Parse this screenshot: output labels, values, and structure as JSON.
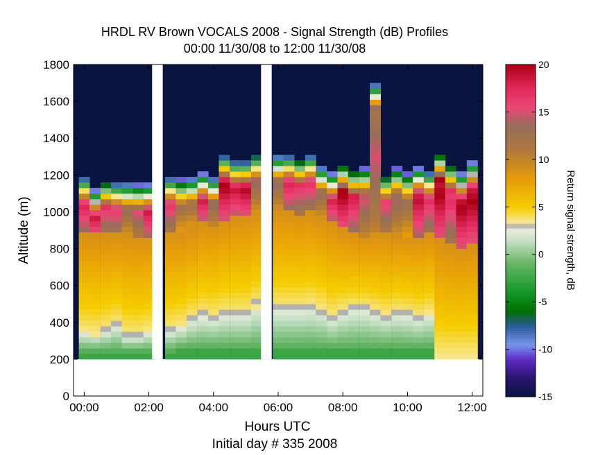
{
  "chart_data": {
    "type": "heatmap",
    "title": "HRDL RV Brown VOCALS 2008 - Signal Strength (dB) Profiles",
    "subtitle": "00:00 11/30/08 to 12:00 11/30/08",
    "xlabel": "Hours UTC",
    "xlabel2": "Initial day # 335  2008",
    "ylabel": "Altitude (m)",
    "xlim": [
      -0.33,
      12.33
    ],
    "ylim": [
      0,
      1800
    ],
    "xticks": [
      "00:00",
      "02:00",
      "04:00",
      "06:00",
      "08:00",
      "10:00",
      "12:00"
    ],
    "xtick_values": [
      0,
      2,
      4,
      6,
      8,
      10,
      12
    ],
    "yticks": [
      "0",
      "200",
      "400",
      "600",
      "800",
      "1000",
      "1200",
      "1400",
      "1600",
      "1800"
    ],
    "ytick_values": [
      0,
      200,
      400,
      600,
      800,
      1000,
      1200,
      1400,
      1600,
      1800
    ],
    "colorbar": {
      "label": "Return signal strength, dB",
      "range": [
        -15,
        20
      ],
      "ticks": [
        "20",
        "15",
        "10",
        "5",
        "0",
        "-5",
        "-10",
        "-15"
      ],
      "tick_values": [
        20,
        15,
        10,
        5,
        0,
        -5,
        -10,
        -15
      ]
    },
    "data_gaps_hours": [
      [
        2.1,
        2.43
      ],
      [
        5.47,
        5.8
      ]
    ],
    "profile_time_step_hours": 0.333,
    "lowest_range_gate_m": 200,
    "range_gate_m": 30,
    "columns": [
      {
        "t": 0.0,
        "cloud_top": 1180,
        "cloud_base": 870,
        "core": 18,
        "mix_low": 230,
        "mix_high": 330,
        "gray": 0
      },
      {
        "t": 0.33,
        "cloud_top": 1110,
        "cloud_base": 870,
        "core": 20,
        "mix_low": 230,
        "mix_high": 320,
        "gray": 0
      },
      {
        "t": 0.67,
        "cloud_top": 1160,
        "cloud_base": 870,
        "core": 17,
        "mix_low": 230,
        "mix_high": 340,
        "gray": 340
      },
      {
        "t": 1.0,
        "cloud_top": 1150,
        "cloud_base": 870,
        "core": 17,
        "mix_low": 230,
        "mix_high": 370,
        "gray": 370
      },
      {
        "t": 1.33,
        "cloud_top": 1150,
        "cloud_base": 870,
        "core": 14,
        "mix_low": 230,
        "mix_high": 310,
        "gray": 310
      },
      {
        "t": 1.67,
        "cloud_top": 1140,
        "cloud_base": 860,
        "core": 16,
        "mix_low": 230,
        "mix_high": 310,
        "gray": 310
      },
      {
        "t": 2.0,
        "cloud_top": 1140,
        "cloud_base": 860,
        "core": 19,
        "mix_low": 230,
        "mix_high": 330,
        "gray": 0
      },
      {
        "t": 2.67,
        "cloud_top": 1180,
        "cloud_base": 890,
        "core": 17,
        "mix_low": 230,
        "mix_high": 340,
        "gray": 340
      },
      {
        "t": 3.0,
        "cloud_top": 1170,
        "cloud_base": 880,
        "core": 13,
        "mix_low": 240,
        "mix_high": 360,
        "gray": 0
      },
      {
        "t": 3.33,
        "cloud_top": 1180,
        "cloud_base": 900,
        "core": 13,
        "mix_low": 240,
        "mix_high": 400,
        "gray": 400
      },
      {
        "t": 3.67,
        "cloud_top": 1200,
        "cloud_base": 930,
        "core": 19,
        "mix_low": 240,
        "mix_high": 420,
        "gray": 440
      },
      {
        "t": 4.0,
        "cloud_top": 1180,
        "cloud_base": 920,
        "core": 15,
        "mix_low": 240,
        "mix_high": 410,
        "gray": 410
      },
      {
        "t": 4.33,
        "cloud_top": 1300,
        "cloud_base": 950,
        "core": 20,
        "mix_low": 240,
        "mix_high": 430,
        "gray": 450
      },
      {
        "t": 4.67,
        "cloud_top": 1270,
        "cloud_base": 960,
        "core": 19,
        "mix_low": 240,
        "mix_high": 430,
        "gray": 430
      },
      {
        "t": 5.0,
        "cloud_top": 1270,
        "cloud_base": 970,
        "core": 20,
        "mix_low": 240,
        "mix_high": 430,
        "gray": 430
      },
      {
        "t": 5.33,
        "cloud_top": 1310,
        "cloud_base": 990,
        "core": 14,
        "mix_low": 240,
        "mix_high": 470,
        "gray": 490
      },
      {
        "t": 6.0,
        "cloud_top": 1300,
        "cloud_base": 1000,
        "core": 14,
        "mix_low": 240,
        "mix_high": 460,
        "gray": 460
      },
      {
        "t": 6.33,
        "cloud_top": 1300,
        "cloud_base": 990,
        "core": 18,
        "mix_low": 240,
        "mix_high": 460,
        "gray": 460
      },
      {
        "t": 6.67,
        "cloud_top": 1280,
        "cloud_base": 980,
        "core": 17,
        "mix_low": 240,
        "mix_high": 460,
        "gray": 460
      },
      {
        "t": 7.0,
        "cloud_top": 1300,
        "cloud_base": 990,
        "core": 17,
        "mix_low": 240,
        "mix_high": 470,
        "gray": 480
      },
      {
        "t": 7.33,
        "cloud_top": 1240,
        "cloud_base": 960,
        "core": 14,
        "mix_low": 240,
        "mix_high": 450,
        "gray": 450
      },
      {
        "t": 7.67,
        "cloud_top": 1200,
        "cloud_base": 940,
        "core": 19,
        "mix_low": 240,
        "mix_high": 410,
        "gray": 410
      },
      {
        "t": 8.0,
        "cloud_top": 1250,
        "cloud_base": 900,
        "core": 20,
        "mix_low": 240,
        "mix_high": 440,
        "gray": 440
      },
      {
        "t": 8.33,
        "cloud_top": 1220,
        "cloud_base": 880,
        "core": 18,
        "mix_low": 240,
        "mix_high": 460,
        "gray": 460
      },
      {
        "t": 8.67,
        "cloud_top": 1230,
        "cloud_base": 860,
        "core": 15,
        "mix_low": 240,
        "mix_high": 460,
        "gray": 460
      },
      {
        "t": 9.0,
        "cloud_top": 1690,
        "cloud_base": 870,
        "core": 15,
        "mix_low": 240,
        "mix_high": 440,
        "gray": 440
      },
      {
        "t": 9.33,
        "cloud_top": 1190,
        "cloud_base": 870,
        "core": 16,
        "mix_low": 240,
        "mix_high": 420,
        "gray": 420
      },
      {
        "t": 9.67,
        "cloud_top": 1230,
        "cloud_base": 860,
        "core": 14,
        "mix_low": 240,
        "mix_high": 440,
        "gray": 450
      },
      {
        "t": 10.0,
        "cloud_top": 1200,
        "cloud_base": 860,
        "core": 13,
        "mix_low": 240,
        "mix_high": 430,
        "gray": 430
      },
      {
        "t": 10.33,
        "cloud_top": 1230,
        "cloud_base": 860,
        "core": 19,
        "mix_low": 240,
        "mix_high": 410,
        "gray": 410
      },
      {
        "t": 10.67,
        "cloud_top": 1210,
        "cloud_base": 870,
        "core": 17,
        "mix_low": 240,
        "mix_high": 430,
        "gray": 0
      },
      {
        "t": 11.0,
        "cloud_top": 1310,
        "cloud_base": 850,
        "core": 20,
        "mix_low": 200,
        "mix_high": 200,
        "gray": 0
      },
      {
        "t": 11.33,
        "cloud_top": 1250,
        "cloud_base": 820,
        "core": 17,
        "mix_low": 200,
        "mix_high": 200,
        "gray": 0
      },
      {
        "t": 11.67,
        "cloud_top": 1200,
        "cloud_base": 800,
        "core": 20,
        "mix_low": 200,
        "mix_high": 200,
        "gray": 0
      },
      {
        "t": 12.0,
        "cloud_top": 1260,
        "cloud_base": 820,
        "core": 20,
        "mix_low": 200,
        "mix_high": 200,
        "gray": 0
      }
    ],
    "grid": false,
    "legend_placement": "none"
  }
}
